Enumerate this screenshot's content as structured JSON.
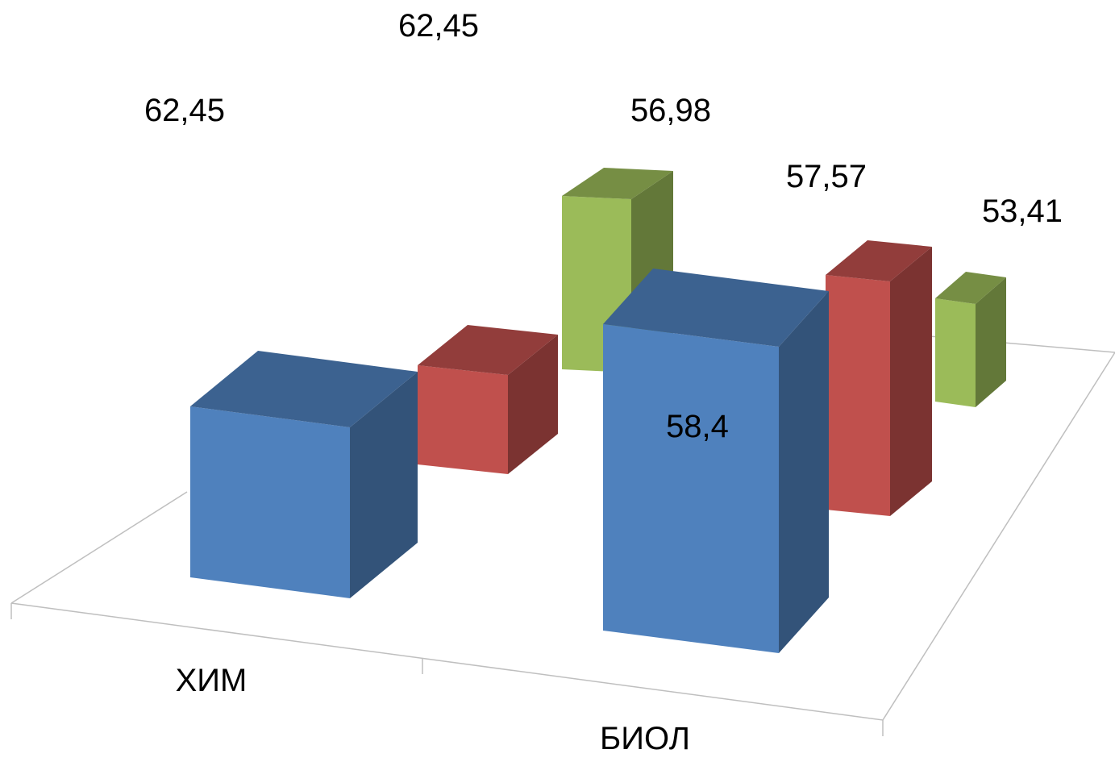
{
  "chart_data": {
    "type": "bar",
    "title": "",
    "xlabel": "",
    "ylabel": "",
    "categories": [
      "ХИМ",
      "БИОЛ"
    ],
    "series": [
      {
        "color": "#4F81BD",
        "values": [
          62.45,
          58.4
        ],
        "labels": [
          "62,45",
          "58,4"
        ]
      },
      {
        "color": "#C0504D",
        "values": [
          62.45,
          57.57
        ],
        "labels": [
          "62,45",
          "57,57"
        ]
      },
      {
        "color": "#9BBB59",
        "values": [
          56.98,
          53.41
        ],
        "labels": [
          "56,98",
          "53,41"
        ]
      }
    ],
    "grid": false,
    "legend": "none"
  }
}
